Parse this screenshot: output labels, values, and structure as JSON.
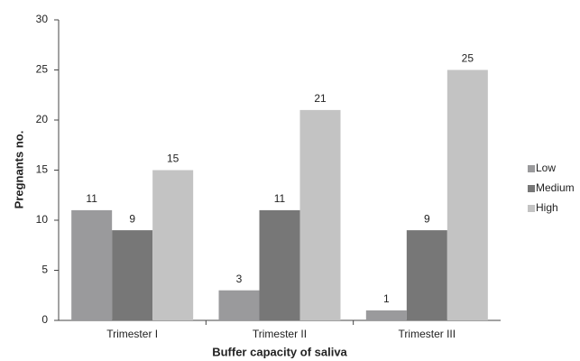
{
  "chart_data": {
    "type": "bar",
    "xlabel": "Buffer capacity of saliva",
    "ylabel": "Pregnants no.",
    "categories": [
      "Trimester I",
      "Trimester II",
      "Trimester III"
    ],
    "series": [
      {
        "name": "Low",
        "color": "#9a9a9c",
        "values": [
          11,
          3,
          1
        ]
      },
      {
        "name": "Medium",
        "color": "#777777",
        "values": [
          9,
          11,
          9
        ]
      },
      {
        "name": "High",
        "color": "#c3c3c3",
        "values": [
          15,
          21,
          25
        ]
      }
    ],
    "ylim": [
      0,
      30
    ],
    "yticks": [
      0,
      5,
      10,
      15,
      20,
      25,
      30
    ],
    "grid": false,
    "legend": "right"
  }
}
